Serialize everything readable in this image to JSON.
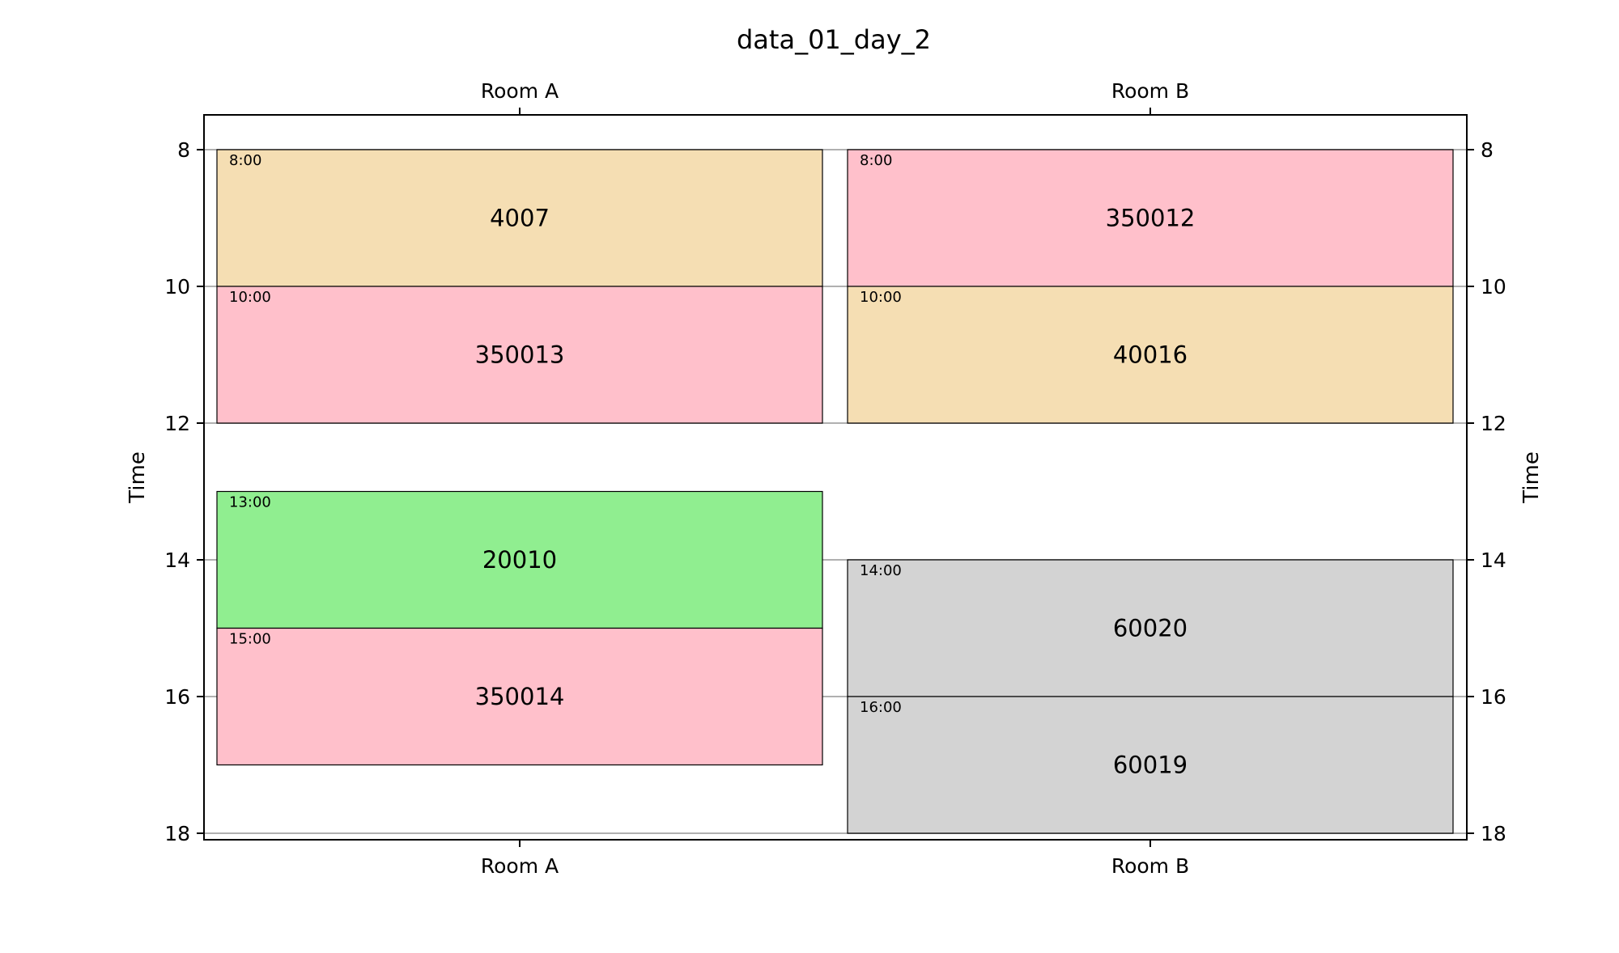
{
  "chart_data": {
    "type": "timeline",
    "title": "data_01_day_2",
    "ylabel": "Time",
    "ylim": [
      8,
      18
    ],
    "y_ticks": [
      8,
      10,
      12,
      14,
      16,
      18
    ],
    "rooms": [
      "Room A",
      "Room B"
    ],
    "gridlines": "horizontal",
    "colors": {
      "4000": "#f5deb3",
      "350000": "#ffc0cb",
      "20000": "#90ee90",
      "60000": "#d3d3d3"
    },
    "events": [
      {
        "room": "Room A",
        "label": "4007",
        "start": 8,
        "end": 10,
        "start_label": "8:00",
        "color": "#f5deb3"
      },
      {
        "room": "Room A",
        "label": "350013",
        "start": 10,
        "end": 12,
        "start_label": "10:00",
        "color": "#ffc0cb"
      },
      {
        "room": "Room A",
        "label": "20010",
        "start": 13,
        "end": 15,
        "start_label": "13:00",
        "color": "#90ee90"
      },
      {
        "room": "Room A",
        "label": "350014",
        "start": 15,
        "end": 17,
        "start_label": "15:00",
        "color": "#ffc0cb"
      },
      {
        "room": "Room B",
        "label": "350012",
        "start": 8,
        "end": 10,
        "start_label": "8:00",
        "color": "#ffc0cb"
      },
      {
        "room": "Room B",
        "label": "40016",
        "start": 10,
        "end": 12,
        "start_label": "10:00",
        "color": "#f5deb3"
      },
      {
        "room": "Room B",
        "label": "60020",
        "start": 14,
        "end": 16,
        "start_label": "14:00",
        "color": "#d3d3d3"
      },
      {
        "room": "Room B",
        "label": "60019",
        "start": 16,
        "end": 18,
        "start_label": "16:00",
        "color": "#d3d3d3"
      }
    ]
  }
}
